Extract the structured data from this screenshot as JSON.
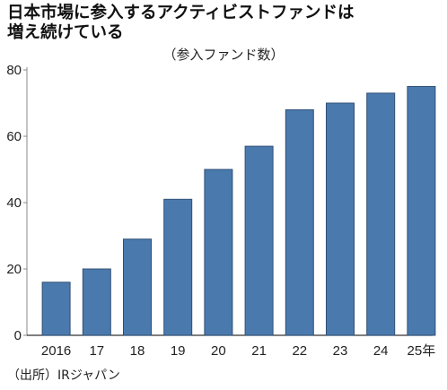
{
  "title_line1": "日本市場に参入するアクティビストファンドは",
  "title_line2": "増え続けている",
  "chart_data": {
    "type": "bar",
    "title": "日本市場に参入するアクティビストファンドは増え続けている",
    "subtitle": "（参入ファンド数）",
    "categories": [
      "2016",
      "17",
      "18",
      "19",
      "20",
      "21",
      "22",
      "23",
      "24",
      "25年"
    ],
    "values": [
      16,
      20,
      29,
      41,
      50,
      57,
      68,
      70,
      73,
      75
    ],
    "ylim": [
      0,
      90
    ],
    "yticks": [
      "0",
      "20",
      "40",
      "60",
      "80"
    ],
    "xlabel": "",
    "ylabel": "",
    "grid": false,
    "bar_color": "#4a7aad",
    "bar_edge_color": "#2f4f75"
  },
  "source": "（出所）IRジャパン"
}
